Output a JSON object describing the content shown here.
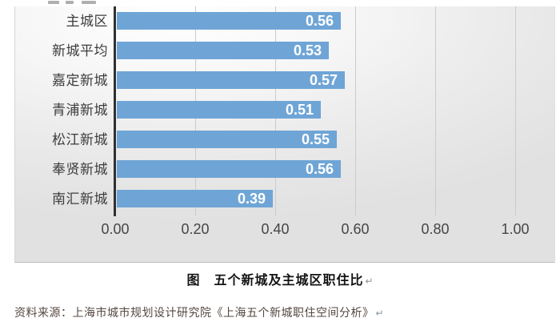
{
  "chart_data": {
    "type": "bar",
    "orientation": "horizontal",
    "categories": [
      "主城区",
      "新城平均",
      "嘉定新城",
      "青浦新城",
      "松江新城",
      "奉贤新城",
      "南汇新城"
    ],
    "values": [
      0.56,
      0.53,
      0.57,
      0.51,
      0.55,
      0.56,
      0.39
    ],
    "value_labels": [
      "0.56",
      "0.53",
      "0.57",
      "0.51",
      "0.55",
      "0.56",
      "0.39"
    ],
    "x_ticks": [
      {
        "label": "0.00",
        "value": 0.0
      },
      {
        "label": "0.20",
        "value": 0.2
      },
      {
        "label": "0.40",
        "value": 0.4
      },
      {
        "label": "0.60",
        "value": 0.6
      },
      {
        "label": "0.80",
        "value": 0.8
      },
      {
        "label": "1.00",
        "value": 1.0
      }
    ],
    "xlim": [
      0.0,
      1.0
    ],
    "grid": true,
    "legend": false,
    "title": "图　五个新城及主城区职住比",
    "colors": {
      "bar": "#6fa5d6",
      "bar_value_text": "#ffffff",
      "axis_line": "#303030",
      "gridline": "#cbcbcb",
      "category_text": "#3c3c3c",
      "tick_text": "#454545"
    }
  },
  "caption": {
    "text": "图　五个新城及主城区职住比",
    "return_mark": "↵"
  },
  "source_note": {
    "text": "资料来源：上海市城市规划设计研究院《上海五个新城职住空间分析》",
    "return_mark": "↵",
    "color": "#554741"
  }
}
